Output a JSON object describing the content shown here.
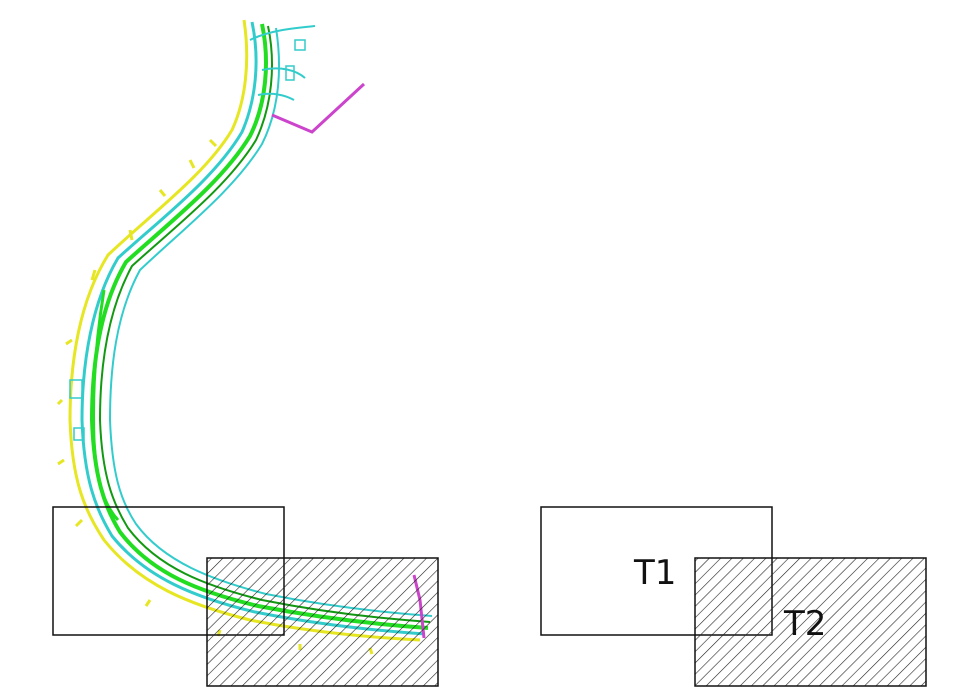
{
  "diagram": {
    "tiles": [
      {
        "id": "T1",
        "label": "T1",
        "style": "outline"
      },
      {
        "id": "T2",
        "label": "T2",
        "style": "hatched"
      }
    ],
    "colors": {
      "road_green": "#22dd22",
      "road_dark_green": "#119911",
      "road_cyan": "#33cccc",
      "road_yellow": "#e6e622",
      "pier_magenta": "#cc44cc",
      "frame": "#111111",
      "hatch": "#222222"
    }
  }
}
